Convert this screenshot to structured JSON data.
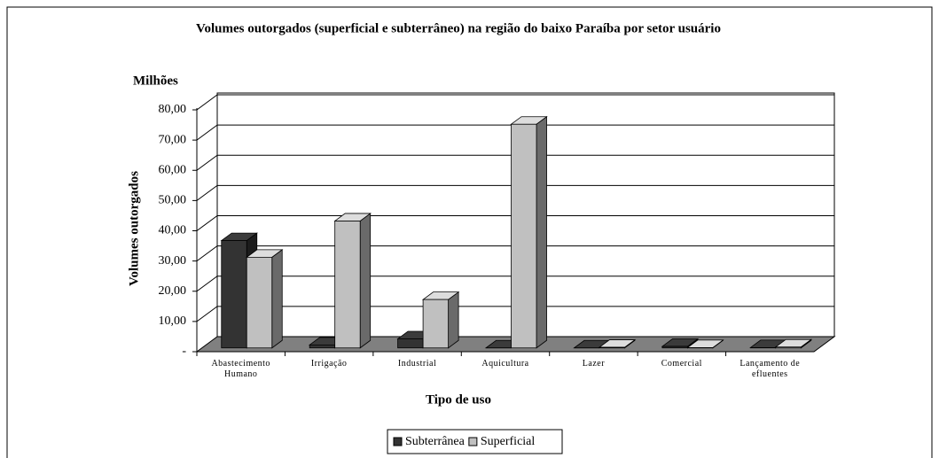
{
  "chart_data": {
    "type": "bar3d",
    "title": "Volumes outorgados (superficial e subterrâneo) na região do baixo Paraíba por setor usuário",
    "unit_label": "Milhões",
    "y_label": "Volumes outorgados",
    "x_label": "Tipo de uso",
    "categories": [
      "Abastecimento Humano",
      "Irrigação",
      "Industrial",
      "Aquicultura",
      "Lazer",
      "Comercial",
      "Lançamento de efluentes"
    ],
    "series": [
      {
        "name": "Subterrânea",
        "color": "#333333",
        "values": [
          35.5,
          1,
          3,
          0,
          0,
          0.5,
          0.1
        ]
      },
      {
        "name": "Superficial",
        "color": "#c0c0c0",
        "values": [
          30,
          42,
          16,
          74,
          0.2,
          0.1,
          0.3
        ]
      }
    ],
    "ylim": [
      0,
      80
    ],
    "yticks": [
      {
        "value": 0,
        "label": "-"
      },
      {
        "value": 10,
        "label": "10,00"
      },
      {
        "value": 20,
        "label": "20,00"
      },
      {
        "value": 30,
        "label": "30,00"
      },
      {
        "value": 40,
        "label": "40,00"
      },
      {
        "value": 50,
        "label": "50,00"
      },
      {
        "value": 60,
        "label": "60,00"
      },
      {
        "value": 70,
        "label": "70,00"
      },
      {
        "value": 80,
        "label": "80,00"
      }
    ],
    "grid": true,
    "legend": "bottom"
  }
}
